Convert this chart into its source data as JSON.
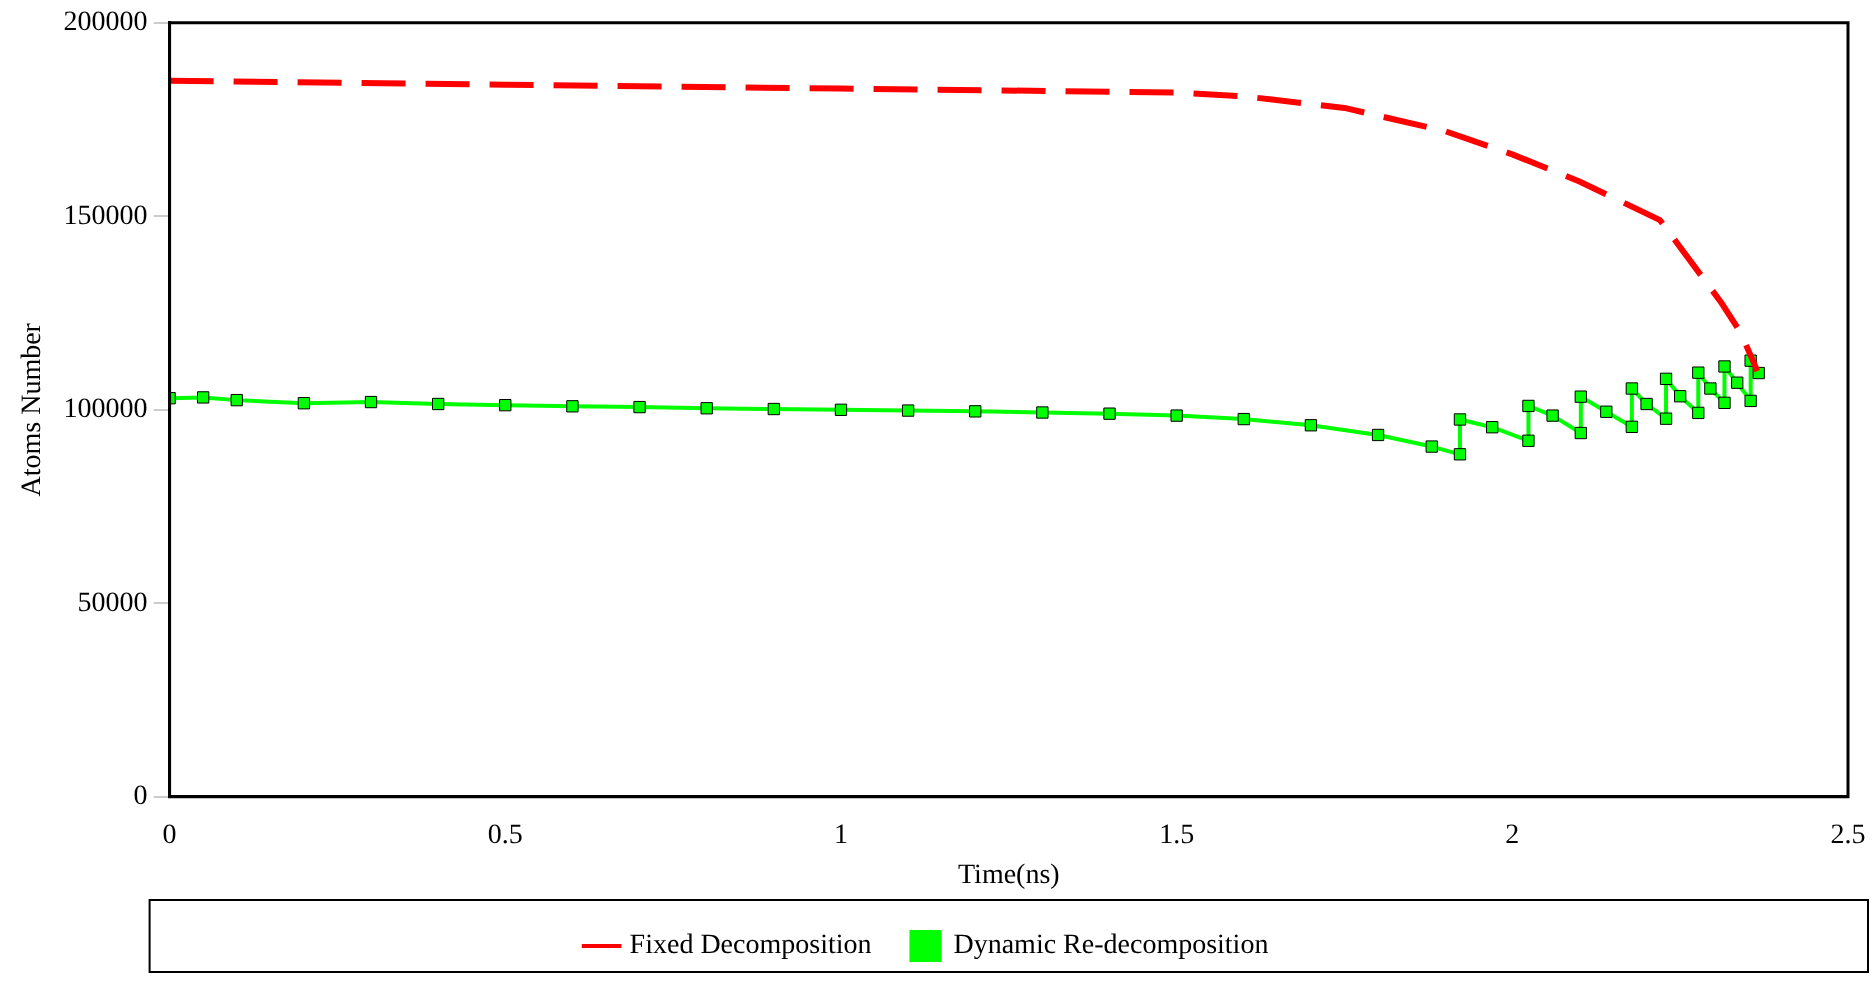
{
  "chart_data": {
    "type": "line",
    "xlabel": "Time(ns)",
    "ylabel": "Atoms Number",
    "xlim": [
      0,
      2.5
    ],
    "xticks": [
      0,
      0.5,
      1,
      1.5,
      2,
      2.5
    ],
    "ylim": [
      0,
      200000
    ],
    "yticks": [
      0,
      50000,
      100000,
      150000,
      200000
    ],
    "grid": false,
    "legend": "bottom",
    "series": [
      {
        "name": "Fixed Decomposition",
        "color": "#ff0000",
        "line_style": "dashed",
        "marker": "none",
        "x": [
          0,
          0.5,
          1,
          1.5,
          1.6,
          1.75,
          1.9,
          2.0,
          2.1,
          2.22,
          2.31,
          2.34,
          2.365
        ],
        "values": [
          185000,
          184000,
          183000,
          182000,
          181000,
          178000,
          172000,
          166000,
          159000,
          149000,
          128000,
          120000,
          110000
        ]
      },
      {
        "name": "Dynamic Re-decomposition",
        "color": "#00ff00",
        "line_style": "solid",
        "marker": "square",
        "x": [
          0,
          0.05,
          0.1,
          0.2,
          0.3,
          0.4,
          0.5,
          0.6,
          0.7,
          0.8,
          0.9,
          1.0,
          1.1,
          1.2,
          1.3,
          1.4,
          1.5,
          1.6,
          1.7,
          1.8,
          1.88,
          1.922,
          1.922,
          1.97,
          2.024,
          2.024,
          2.06,
          2.102,
          2.102,
          2.14,
          2.178,
          2.178,
          2.2,
          2.229,
          2.229,
          2.25,
          2.277,
          2.277,
          2.295,
          2.316,
          2.316,
          2.335,
          2.355,
          2.355,
          2.367
        ],
        "values": [
          103000,
          103200,
          102500,
          101700,
          102000,
          101500,
          101200,
          100900,
          100700,
          100400,
          100200,
          100000,
          99800,
          99600,
          99300,
          99000,
          98500,
          97600,
          96000,
          93500,
          90500,
          88500,
          97500,
          95500,
          92000,
          101000,
          98500,
          94000,
          103400,
          99500,
          95600,
          105500,
          101500,
          97700,
          108000,
          103500,
          99200,
          109600,
          105500,
          101800,
          111200,
          107000,
          102300,
          112700,
          109500
        ]
      }
    ]
  }
}
